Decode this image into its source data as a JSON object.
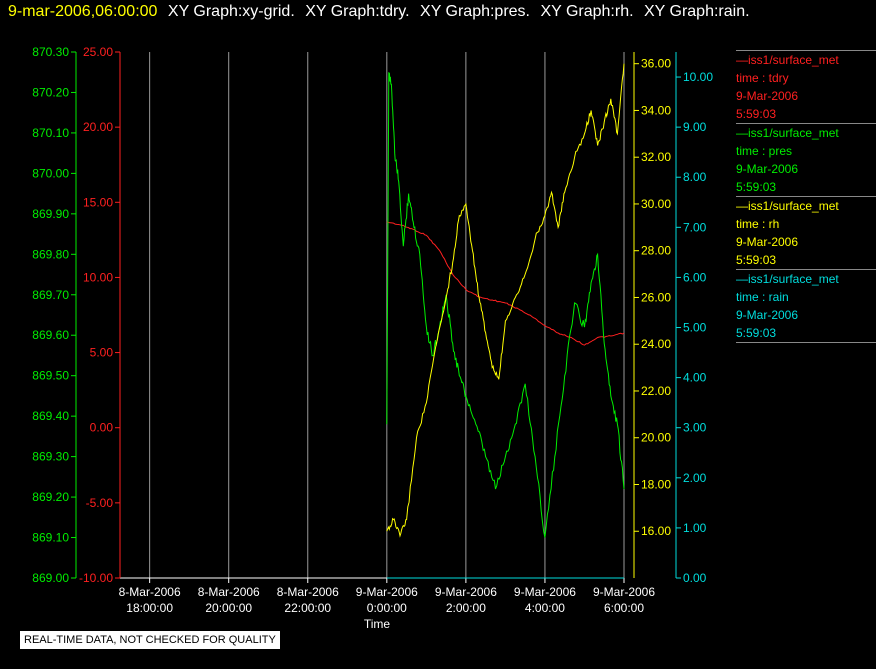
{
  "header": {
    "timestamp": "9-mar-2006,06:00:00",
    "graph_titles": [
      "XY Graph:xy-grid.",
      "XY Graph:tdry.",
      "XY Graph:pres.",
      "XY Graph:rh.",
      "XY Graph:rain."
    ]
  },
  "legend": [
    {
      "source": "iss1/surface_met",
      "var": "time : tdry",
      "date": "9-Mar-2006",
      "time": "5:59:03",
      "color": "#ff2020"
    },
    {
      "source": "iss1/surface_met",
      "var": "time : pres",
      "date": "9-Mar-2006",
      "time": "5:59:03",
      "color": "#00ee00"
    },
    {
      "source": "iss1/surface_met",
      "var": "time : rh",
      "date": "9-Mar-2006",
      "time": "5:59:03",
      "color": "#ffff00"
    },
    {
      "source": "iss1/surface_met",
      "var": "time : rain",
      "date": "9-Mar-2006",
      "time": "5:59:03",
      "color": "#00dddd"
    }
  ],
  "footer": {
    "quality_note": "REAL-TIME DATA, NOT CHECKED FOR QUALITY"
  },
  "chart_data": {
    "type": "line",
    "xlabel": "Time",
    "x_ticks": [
      {
        "date": "8-Mar-2006",
        "time": "18:00:00"
      },
      {
        "date": "8-Mar-2006",
        "time": "20:00:00"
      },
      {
        "date": "8-Mar-2006",
        "time": "22:00:00"
      },
      {
        "date": "9-Mar-2006",
        "time": "0:00:00"
      },
      {
        "date": "9-Mar-2006",
        "time": "2:00:00"
      },
      {
        "date": "9-Mar-2006",
        "time": "4:00:00"
      },
      {
        "date": "9-Mar-2006",
        "time": "6:00:00"
      }
    ],
    "xlim": [
      "8-Mar-2006 17:15",
      "9-Mar-2006 06:00"
    ],
    "grid": "vertical",
    "axes": {
      "pres": {
        "ylim": [
          869.0,
          870.3
        ],
        "ticks": [
          "869.00",
          "869.10",
          "869.20",
          "869.30",
          "869.40",
          "869.50",
          "869.60",
          "869.70",
          "869.80",
          "869.90",
          "870.00",
          "870.10",
          "870.20",
          "870.30"
        ],
        "color": "#00ee00",
        "side": "left-outer"
      },
      "tdry": {
        "ylim": [
          -10.0,
          25.0
        ],
        "ticks": [
          "-10.00",
          "-5.00",
          "0.00",
          "5.00",
          "10.00",
          "15.00",
          "20.00",
          "25.00"
        ],
        "color": "#ff2020",
        "side": "left-inner"
      },
      "rh": {
        "ylim": [
          14.0,
          36.5
        ],
        "ticks": [
          "16.00",
          "18.00",
          "20.00",
          "22.00",
          "24.00",
          "26.00",
          "28.00",
          "30.00",
          "32.00",
          "34.00",
          "36.00"
        ],
        "color": "#ffff00",
        "side": "right-inner"
      },
      "rain": {
        "ylim": [
          0.0,
          10.5
        ],
        "ticks": [
          "0.00",
          "1.00",
          "2.00",
          "3.00",
          "4.00",
          "5.00",
          "6.00",
          "7.00",
          "8.00",
          "9.00",
          "10.00"
        ],
        "color": "#00dddd",
        "side": "right-outer"
      }
    },
    "series": [
      {
        "key": "tdry",
        "axis": "tdry",
        "color": "#ff2020",
        "points": [
          [
            "9-Mar-2006 00:00",
            13.7
          ],
          [
            "9-Mar-2006 00:20",
            13.5
          ],
          [
            "9-Mar-2006 00:40",
            13.2
          ],
          [
            "9-Mar-2006 01:00",
            12.8
          ],
          [
            "9-Mar-2006 01:20",
            11.8
          ],
          [
            "9-Mar-2006 01:40",
            10.2
          ],
          [
            "9-Mar-2006 02:00",
            9.2
          ],
          [
            "9-Mar-2006 02:20",
            8.7
          ],
          [
            "9-Mar-2006 02:40",
            8.5
          ],
          [
            "9-Mar-2006 03:00",
            8.3
          ],
          [
            "9-Mar-2006 03:20",
            7.9
          ],
          [
            "9-Mar-2006 03:40",
            7.4
          ],
          [
            "9-Mar-2006 04:00",
            6.8
          ],
          [
            "9-Mar-2006 04:20",
            6.3
          ],
          [
            "9-Mar-2006 04:40",
            6.0
          ],
          [
            "9-Mar-2006 05:00",
            5.5
          ],
          [
            "9-Mar-2006 05:20",
            6.0
          ],
          [
            "9-Mar-2006 05:40",
            6.1
          ],
          [
            "9-Mar-2006 06:00",
            6.3
          ]
        ]
      },
      {
        "key": "pres",
        "axis": "pres",
        "color": "#00ee00",
        "points": [
          [
            "9-Mar-2006 00:00",
            869.38
          ],
          [
            "9-Mar-2006 00:03",
            870.25
          ],
          [
            "9-Mar-2006 00:07",
            870.22
          ],
          [
            "9-Mar-2006 00:12",
            870.05
          ],
          [
            "9-Mar-2006 00:18",
            869.98
          ],
          [
            "9-Mar-2006 00:25",
            869.82
          ],
          [
            "9-Mar-2006 00:33",
            869.95
          ],
          [
            "9-Mar-2006 00:40",
            869.88
          ],
          [
            "9-Mar-2006 00:50",
            869.8
          ],
          [
            "9-Mar-2006 01:00",
            869.62
          ],
          [
            "9-Mar-2006 01:10",
            869.55
          ],
          [
            "9-Mar-2006 01:20",
            869.62
          ],
          [
            "9-Mar-2006 01:30",
            869.7
          ],
          [
            "9-Mar-2006 01:40",
            869.58
          ],
          [
            "9-Mar-2006 01:50",
            869.5
          ],
          [
            "9-Mar-2006 02:00",
            869.45
          ],
          [
            "9-Mar-2006 02:15",
            869.38
          ],
          [
            "9-Mar-2006 02:30",
            869.3
          ],
          [
            "9-Mar-2006 02:45",
            869.22
          ],
          [
            "9-Mar-2006 03:00",
            869.3
          ],
          [
            "9-Mar-2006 03:15",
            869.38
          ],
          [
            "9-Mar-2006 03:30",
            869.48
          ],
          [
            "9-Mar-2006 03:45",
            869.3
          ],
          [
            "9-Mar-2006 04:00",
            869.1
          ],
          [
            "9-Mar-2006 04:15",
            869.3
          ],
          [
            "9-Mar-2006 04:30",
            869.5
          ],
          [
            "9-Mar-2006 04:45",
            869.68
          ],
          [
            "9-Mar-2006 05:00",
            869.62
          ],
          [
            "9-Mar-2006 05:10",
            869.73
          ],
          [
            "9-Mar-2006 05:20",
            869.8
          ],
          [
            "9-Mar-2006 05:30",
            869.58
          ],
          [
            "9-Mar-2006 05:40",
            869.45
          ],
          [
            "9-Mar-2006 05:50",
            869.38
          ],
          [
            "9-Mar-2006 06:00",
            869.22
          ]
        ]
      },
      {
        "key": "rh",
        "axis": "rh",
        "color": "#ffff00",
        "points": [
          [
            "9-Mar-2006 00:00",
            16.0
          ],
          [
            "9-Mar-2006 00:10",
            16.5
          ],
          [
            "9-Mar-2006 00:20",
            15.8
          ],
          [
            "9-Mar-2006 00:30",
            16.5
          ],
          [
            "9-Mar-2006 00:45",
            20.0
          ],
          [
            "9-Mar-2006 01:00",
            21.5
          ],
          [
            "9-Mar-2006 01:15",
            24.0
          ],
          [
            "9-Mar-2006 01:30",
            26.0
          ],
          [
            "9-Mar-2006 01:40",
            27.5
          ],
          [
            "9-Mar-2006 01:50",
            29.5
          ],
          [
            "9-Mar-2006 02:00",
            30.0
          ],
          [
            "9-Mar-2006 02:10",
            28.0
          ],
          [
            "9-Mar-2006 02:20",
            26.0
          ],
          [
            "9-Mar-2006 02:30",
            24.5
          ],
          [
            "9-Mar-2006 02:40",
            23.0
          ],
          [
            "9-Mar-2006 02:50",
            22.5
          ],
          [
            "9-Mar-2006 03:00",
            25.0
          ],
          [
            "9-Mar-2006 03:15",
            26.0
          ],
          [
            "9-Mar-2006 03:30",
            27.0
          ],
          [
            "9-Mar-2006 03:45",
            28.5
          ],
          [
            "9-Mar-2006 04:00",
            29.5
          ],
          [
            "9-Mar-2006 04:10",
            30.5
          ],
          [
            "9-Mar-2006 04:20",
            29.0
          ],
          [
            "9-Mar-2006 04:30",
            30.5
          ],
          [
            "9-Mar-2006 04:45",
            32.0
          ],
          [
            "9-Mar-2006 05:00",
            33.0
          ],
          [
            "9-Mar-2006 05:10",
            34.0
          ],
          [
            "9-Mar-2006 05:20",
            32.5
          ],
          [
            "9-Mar-2006 05:30",
            33.5
          ],
          [
            "9-Mar-2006 05:40",
            34.5
          ],
          [
            "9-Mar-2006 05:50",
            33.0
          ],
          [
            "9-Mar-2006 06:00",
            36.0
          ]
        ]
      },
      {
        "key": "rain",
        "axis": "rain",
        "color": "#00dddd",
        "points": [
          [
            "9-Mar-2006 00:00",
            0.0
          ],
          [
            "9-Mar-2006 06:00",
            0.0
          ]
        ]
      }
    ]
  }
}
